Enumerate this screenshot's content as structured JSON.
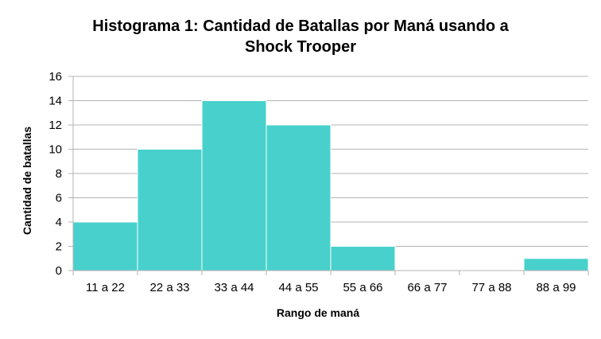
{
  "chart_data": {
    "type": "bar",
    "title_lines": [
      "Histograma 1: Cantidad de Batallas por Maná usando a",
      "Shock Trooper"
    ],
    "xlabel": "Rango de maná",
    "ylabel": "Cantidad de batallas",
    "categories": [
      "11 a 22",
      "22 a 33",
      "33 a 44",
      "44 a 55",
      "55 a 66",
      "66 a 77",
      "77 a 88",
      "88 a 99"
    ],
    "values": [
      4,
      10,
      14,
      12,
      2,
      0,
      0,
      1
    ],
    "ylim": [
      0,
      16
    ],
    "yticks": [
      0,
      2,
      4,
      6,
      8,
      10,
      12,
      14,
      16
    ],
    "grid": true,
    "legend": "none",
    "bar_color": "#48d1cc",
    "grid_color": "#b3b3b3"
  }
}
